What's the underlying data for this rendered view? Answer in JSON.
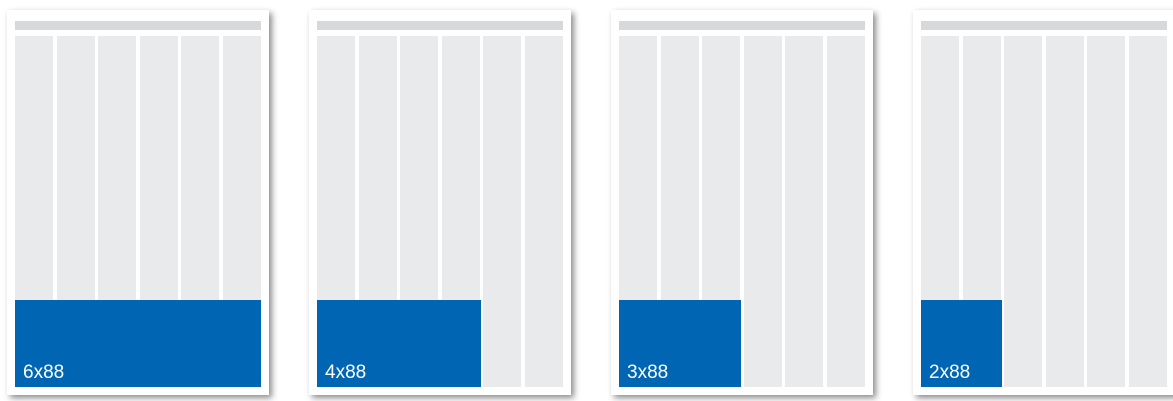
{
  "colors": {
    "page": "#ffffff",
    "header_bar": "#d7d8da",
    "column": "#e9eaec",
    "ad_block": "#0066b3",
    "ad_text": "#ffffff"
  },
  "columns_per_page": 6,
  "pages": [
    {
      "label": "6x88",
      "span_columns": 6
    },
    {
      "label": "4x88",
      "span_columns": 4
    },
    {
      "label": "3x88",
      "span_columns": 3
    },
    {
      "label": "2x88",
      "span_columns": 2
    }
  ]
}
